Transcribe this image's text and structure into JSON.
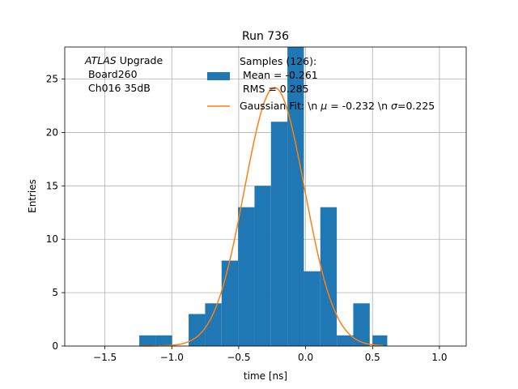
{
  "chart_data": {
    "type": "bar",
    "title": "Run 736",
    "xlabel": "time [ns]",
    "ylabel": "Entries",
    "xlim": [
      -1.8,
      1.2
    ],
    "ylim": [
      0,
      28
    ],
    "grid": true,
    "xticks": [
      -1.5,
      -1.0,
      -0.5,
      0.0,
      0.5,
      1.0
    ],
    "xtick_labels": [
      "−1.5",
      "−1.0",
      "−0.5",
      "0.0",
      "0.5",
      "1.0"
    ],
    "yticks": [
      0,
      5,
      10,
      15,
      20,
      25
    ],
    "ytick_labels": [
      "0",
      "5",
      "10",
      "15",
      "20",
      "25"
    ],
    "bin_width": 0.123,
    "bin_starts": [
      -1.243,
      -1.12,
      -0.997,
      -0.874,
      -0.751,
      -0.628,
      -0.505,
      -0.382,
      -0.259,
      -0.136,
      -0.013,
      0.11,
      0.233,
      0.356,
      0.479
    ],
    "counts": [
      1,
      1,
      0,
      3,
      4,
      8,
      13,
      15,
      21,
      28,
      7,
      13,
      1,
      4,
      0
    ],
    "extra_bars": [
      {
        "start": 0.5,
        "width": 0.11,
        "count": 1
      }
    ],
    "fit": {
      "mu": -0.232,
      "sigma": 0.225,
      "amplitude": 24.2,
      "x_range": [
        -1.24,
        0.58
      ]
    },
    "legend_placement": "upper-right",
    "legend_entries": {
      "histogram_lines": [
        "Samples (126):",
        " Mean = -0.261",
        " RMS = 0.285"
      ],
      "fit_prefix": "Gaussian Fit: \\n ",
      "fit_mu_symbol": "μ",
      "fit_mid": " = -0.232 \\n ",
      "fit_sigma_symbol": "σ",
      "fit_suffix": "=0.225"
    },
    "annotation": {
      "atlas": "ATLAS",
      "upgrade": " Upgrade",
      "line2": " Board260",
      "line3": " Ch016 35dB"
    },
    "colors": {
      "bars": "#1f77b4",
      "fit": "#ff7f0e",
      "grid": "#b0b0b0"
    }
  }
}
